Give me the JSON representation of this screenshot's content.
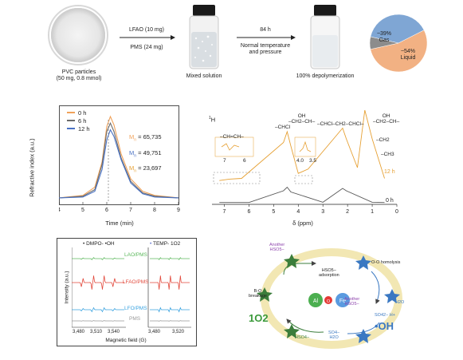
{
  "top": {
    "pvc_caption": "PVC particles\n(50 mg, 0.8 mmol)",
    "step1_top": "LFAO (10 mg)",
    "step1_bottom": "PMS (24 mg)",
    "mixed_caption": "Mixed solution",
    "step2_top": "84 h",
    "step2_bottom": "Normal temperature\nand pressure",
    "depoly_caption": "100% depolymerization",
    "pie": {
      "gas_label": "~39%\nGas",
      "liquid_label": "~54%\nLiquid",
      "gas_value": 39,
      "liquid_value": 54,
      "other_value": 7,
      "gas_color": "#7fa6d4",
      "liquid_color": "#f2b183",
      "other_color": "#8c8c8c"
    }
  },
  "gpc": {
    "ylabel": "Refractive index (a.u.)",
    "xlabel": "Time (min)",
    "xticks": [
      "4",
      "5",
      "6",
      "7",
      "8",
      "9"
    ],
    "legend": [
      {
        "label": "0 h",
        "color": "#f0a25a"
      },
      {
        "label": "6 h",
        "color": "#6b6b6b"
      },
      {
        "label": "12 h",
        "color": "#4a72c4"
      }
    ],
    "mn": [
      {
        "value": "= 65,735",
        "color": "#f0a25a"
      },
      {
        "value": "= 49,751",
        "color": "#4a72c4"
      },
      {
        "value": "= 23,697",
        "color": "#e6a033"
      }
    ],
    "mn_symbol": "M",
    "mn_sub": "n"
  },
  "chart_data": [
    {
      "type": "line",
      "xlabel": "Time (min)",
      "ylabel": "Refractive index (a.u.)",
      "xlim": [
        4,
        9
      ],
      "series": [
        {
          "name": "0 h",
          "x": [
            4.0,
            5.0,
            5.5,
            5.8,
            6.0,
            6.15,
            6.3,
            6.6,
            7.0,
            7.5,
            8.0,
            9.0
          ],
          "values": [
            0.02,
            0.05,
            0.15,
            0.45,
            0.88,
            1.0,
            0.9,
            0.55,
            0.25,
            0.1,
            0.05,
            0.02
          ]
        },
        {
          "name": "6 h",
          "x": [
            4.0,
            5.0,
            5.5,
            5.8,
            6.0,
            6.15,
            6.3,
            6.6,
            7.0,
            7.5,
            8.0,
            9.0
          ],
          "values": [
            0.02,
            0.04,
            0.12,
            0.42,
            0.82,
            0.92,
            0.82,
            0.5,
            0.22,
            0.08,
            0.04,
            0.02
          ]
        },
        {
          "name": "12 h",
          "x": [
            4.0,
            5.0,
            5.5,
            5.8,
            6.0,
            6.15,
            6.3,
            6.6,
            7.0,
            7.5,
            8.0,
            9.0
          ],
          "values": [
            0.02,
            0.03,
            0.1,
            0.36,
            0.72,
            0.84,
            0.76,
            0.48,
            0.2,
            0.07,
            0.03,
            0.02
          ]
        }
      ]
    },
    {
      "type": "line",
      "xlabel": "δ (ppm)",
      "xlim": [
        7.5,
        0
      ],
      "series": [
        {
          "name": "12 h",
          "x": [
            7.2,
            6.8,
            6.3,
            4.6,
            4.45,
            4.3,
            4.0,
            3.6,
            2.2,
            2.05,
            1.6,
            1.3,
            1.0,
            0.5
          ],
          "values": [
            0.02,
            0.04,
            0.05,
            0.55,
            0.7,
            0.5,
            0.12,
            0.18,
            0.75,
            0.6,
            0.2,
            1.0,
            0.6,
            0.05
          ]
        },
        {
          "name": "0 h",
          "x": [
            7.2,
            6.0,
            4.6,
            4.45,
            4.3,
            3.0,
            2.2,
            2.05,
            1.0,
            0.5
          ],
          "values": [
            0.01,
            0.01,
            0.5,
            0.65,
            0.45,
            0.02,
            0.6,
            0.5,
            0.02,
            0.01
          ]
        }
      ]
    },
    {
      "type": "line",
      "xlabel": "Magnetic field (G)",
      "ylabel": "Intensity (a.u.)",
      "series": [
        {
          "name": "LAO/PMS",
          "values": [
            0,
            0.05,
            -0.05,
            0.04,
            -0.04,
            0.03,
            0
          ]
        },
        {
          "name": "LFAO/PMS",
          "values": [
            0,
            0.6,
            -0.6,
            1.0,
            -1.0,
            0.6,
            -0.6,
            0
          ]
        },
        {
          "name": "LFO/PMS",
          "values": [
            0,
            0.1,
            -0.1,
            0.15,
            -0.15,
            0.1,
            0
          ]
        },
        {
          "name": "PMS",
          "values": [
            0,
            0.02,
            -0.02,
            0
          ]
        }
      ]
    }
  ],
  "nmr": {
    "h_label": "1H",
    "xlabel": "δ (ppm)",
    "xticks": [
      "7",
      "6",
      "5",
      "4",
      "3",
      "2",
      "1",
      "0"
    ],
    "trace_12h": "12 h",
    "trace_0h": "0 h",
    "labels": {
      "ch_eq_ch": "–CH=CH–",
      "chcl": "–CHCl",
      "choh": "OH\n–CH2–CH–",
      "polymer": "–CHCl–CH2–CHCl–",
      "oh_group": "OH\n–CH2–CH–",
      "ch2": "–CH2",
      "ch3": "–CH3",
      "inset1_ticks": [
        "7",
        "6"
      ],
      "inset2_ticks": [
        "4.0",
        "3.5"
      ]
    }
  },
  "epr": {
    "legend_dmpo": "DMPO- •OH",
    "legend_temp": "TEMP- 1O2",
    "ylabel": "Intensity (a.u.)",
    "xlabel": "Magnetic field (G)",
    "xticks_left": [
      "3,480",
      "3,510",
      "3,540"
    ],
    "xticks_right": [
      "3,480",
      "3,520"
    ],
    "labels": [
      "LAO/PMS",
      "LFAO/PMS",
      "LFO/PMS",
      "PMS"
    ],
    "colors": {
      "lao": "#5cb85c",
      "lfao": "#e2483b",
      "lfo": "#3aa3e0",
      "pms": "#999999"
    }
  },
  "mechanism": {
    "center_al": "Al",
    "center_o": "O",
    "center_fe": "Fe",
    "singlet_oxygen": "1O2",
    "hydroxyl": "•OH",
    "hso5_adsorption": "HSO5−\nadsorption",
    "bo_breakage": "B-O\nbreakage",
    "oo_homolysis": "O-O homolysis",
    "another_hso5_left": "Another\nHSO5−",
    "another_hso5_right": "Another\nHSO5−",
    "hso4": "HSO4−",
    "so4_h2o": "SO4−\nH2O",
    "so4_h": "SO42− H+",
    "h2o": "H2O"
  }
}
